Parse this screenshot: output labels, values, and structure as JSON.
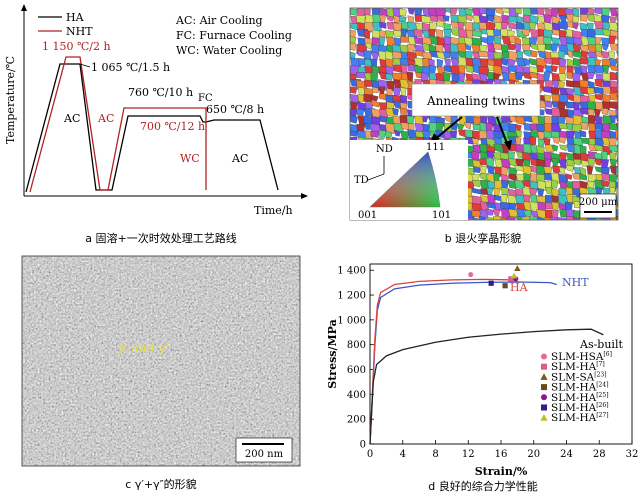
{
  "panel_a": {
    "ylabel": "Temperature/℃",
    "xlabel": "Time/h",
    "legend": [
      {
        "name": "HA",
        "color": "#000000"
      },
      {
        "name": "NHT",
        "color": "#b22222"
      }
    ],
    "notes": [
      "AC: Air Cooling",
      "FC: Furnace Cooling",
      "WC: Water Cooling"
    ],
    "labels": {
      "sol_temp": "1 150 ℃/2 h",
      "ha_sol": "1 065 ℃/1.5 h",
      "age1": "760 ℃/10 h",
      "fc": "FC",
      "age2": "650 ℃/8 h",
      "nht_age": "700 ℃/12 h",
      "ac1": "AC",
      "ac2": "AC",
      "wc": "WC",
      "ac3": "AC"
    },
    "caption": "a 固溶+一次时效处理工艺路线"
  },
  "panel_b": {
    "annotation": "Annealing twins",
    "ipf": {
      "nd": "ND",
      "td": "TD",
      "c001": "001",
      "c101": "101",
      "c111": "111"
    },
    "scale": "200 μm",
    "caption": "b 退火孪晶形貌"
  },
  "panel_c": {
    "label": "γ′ and γ″",
    "scale": "200 nm",
    "caption": "c γ′+γ″的形貌"
  },
  "panel_d": {
    "caption": "d 良好的综合力学性能",
    "chart_data": {
      "type": "line",
      "xlabel": "Strain/%",
      "ylabel": "Stress/MPa",
      "xlim": [
        0,
        32
      ],
      "ylim": [
        0,
        1450
      ],
      "xticks": [
        0,
        4,
        8,
        12,
        16,
        20,
        24,
        28,
        32
      ],
      "yticks": [
        0,
        200,
        400,
        600,
        800,
        1000,
        1200,
        1400
      ],
      "ytick_labels": [
        "0",
        "200",
        "400",
        "600",
        "800",
        "1 000",
        "1 200",
        "1 400"
      ],
      "series": [
        {
          "name": "NHT",
          "color": "#3a56c5",
          "points": [
            [
              0,
              0
            ],
            [
              0.6,
              800
            ],
            [
              0.9,
              1080
            ],
            [
              1.3,
              1180
            ],
            [
              3,
              1250
            ],
            [
              6,
              1280
            ],
            [
              10,
              1295
            ],
            [
              14,
              1302
            ],
            [
              18,
              1305
            ],
            [
              22,
              1300
            ],
            [
              22.8,
              1285
            ]
          ]
        },
        {
          "name": "HA",
          "color": "#d9443a",
          "points": [
            [
              0,
              0
            ],
            [
              0.6,
              850
            ],
            [
              0.9,
              1120
            ],
            [
              1.3,
              1220
            ],
            [
              3,
              1285
            ],
            [
              6,
              1310
            ],
            [
              10,
              1322
            ],
            [
              14,
              1326
            ],
            [
              17.5,
              1322
            ],
            [
              18.3,
              1300
            ]
          ]
        },
        {
          "name": "As-built",
          "color": "#222222",
          "points": [
            [
              0,
              0
            ],
            [
              0.4,
              500
            ],
            [
              0.8,
              640
            ],
            [
              2,
              710
            ],
            [
              4,
              760
            ],
            [
              8,
              820
            ],
            [
              12,
              860
            ],
            [
              16,
              885
            ],
            [
              20,
              905
            ],
            [
              24,
              920
            ],
            [
              27,
              925
            ],
            [
              28.5,
              880
            ]
          ]
        }
      ],
      "scatter": [
        {
          "name": "SLM-HSA",
          "ref": "[6]",
          "marker": "circle",
          "color": "#e0709a",
          "x": 12.3,
          "y": 1365
        },
        {
          "name": "SLM-HA",
          "ref": "[7]",
          "marker": "square",
          "color": "#e05a8a",
          "x": 17.2,
          "y": 1330
        },
        {
          "name": "SLM-SA",
          "ref": "[23]",
          "marker": "triangle",
          "color": "#7a5a1a",
          "x": 18.0,
          "y": 1415
        },
        {
          "name": "SLM-HA",
          "ref": "[24]",
          "marker": "square",
          "color": "#6a4a1a",
          "x": 16.5,
          "y": 1275
        },
        {
          "name": "SLM-HA",
          "ref": "[25]",
          "marker": "circle",
          "color": "#8a1a8a",
          "x": 17.8,
          "y": 1330
        },
        {
          "name": "SLM-HA",
          "ref": "[26]",
          "marker": "square",
          "color": "#3a1a8a",
          "x": 14.8,
          "y": 1295
        },
        {
          "name": "SLM-HA",
          "ref": "[27]",
          "marker": "triangle",
          "color": "#c0c020",
          "x": 17.6,
          "y": 1355
        }
      ],
      "curve_labels": {
        "nht": "NHT",
        "ha": "HA",
        "asbuilt": "As-built"
      },
      "legend_position": "bottom-right"
    }
  }
}
